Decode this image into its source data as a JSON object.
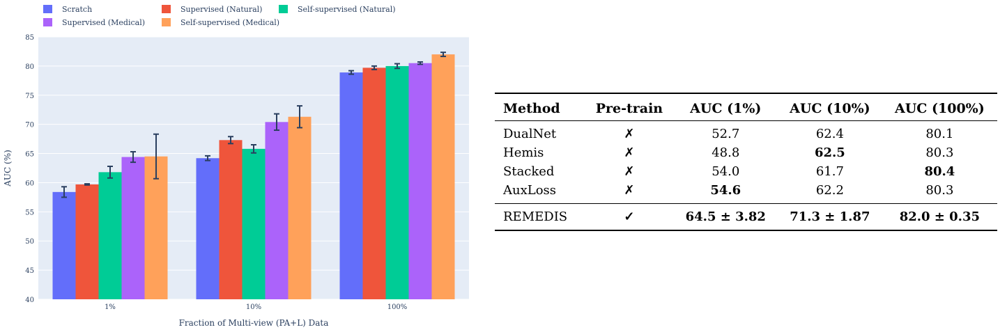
{
  "chart_data": {
    "type": "bar",
    "categories": [
      "1%",
      "10%",
      "100%"
    ],
    "xlabel": "Fraction of Multi-view (PA+L) Data",
    "ylabel": "AUC (%)",
    "ylim": [
      40,
      85
    ],
    "yticks": [
      40,
      45,
      50,
      55,
      60,
      65,
      70,
      75,
      80,
      85
    ],
    "grid": true,
    "legend_position": "top",
    "series": [
      {
        "name": "Scratch",
        "color": "#636efa",
        "values": [
          58.4,
          64.2,
          78.9
        ],
        "errors": [
          0.9,
          0.4,
          0.3
        ]
      },
      {
        "name": "Supervised (Natural)",
        "color": "#ef553b",
        "values": [
          59.7,
          67.3,
          79.7
        ],
        "errors": [
          0.1,
          0.6,
          0.3
        ]
      },
      {
        "name": "Self-supervised (Natural)",
        "color": "#00cc96",
        "values": [
          61.8,
          65.8,
          80.0
        ],
        "errors": [
          1.0,
          0.7,
          0.4
        ]
      },
      {
        "name": "Supervised (Medical)",
        "color": "#ab63fa",
        "values": [
          64.4,
          70.4,
          80.5
        ],
        "errors": [
          0.9,
          1.4,
          0.2
        ]
      },
      {
        "name": "Self-supervised (Medical)",
        "color": "#ffa15a",
        "values": [
          64.5,
          71.3,
          82.0
        ],
        "errors": [
          3.82,
          1.87,
          0.35
        ]
      }
    ],
    "plot_bg": "#e5ecf6"
  },
  "table": {
    "headers": [
      "Method",
      "Pre-train",
      "AUC (1%)",
      "AUC (10%)",
      "AUC (100%)"
    ],
    "rows": [
      {
        "method": "DualNet",
        "pretrain": "✗",
        "auc1": "52.7",
        "auc10": "62.4",
        "auc100": "80.1",
        "bold": []
      },
      {
        "method": "Hemis",
        "pretrain": "✗",
        "auc1": "48.8",
        "auc10": "62.5",
        "auc100": "80.3",
        "bold": [
          "auc10"
        ]
      },
      {
        "method": "Stacked",
        "pretrain": "✗",
        "auc1": "54.0",
        "auc10": "61.7",
        "auc100": "80.4",
        "bold": [
          "auc100"
        ]
      },
      {
        "method": "AuxLoss",
        "pretrain": "✗",
        "auc1": "54.6",
        "auc10": "62.2",
        "auc100": "80.3",
        "bold": [
          "auc1"
        ]
      }
    ],
    "final_row": {
      "method": "REMEDIS",
      "pretrain": "✓",
      "auc1": "64.5 ± 3.82",
      "auc10": "71.3 ± 1.87",
      "auc100": "82.0 ± 0.35"
    }
  }
}
